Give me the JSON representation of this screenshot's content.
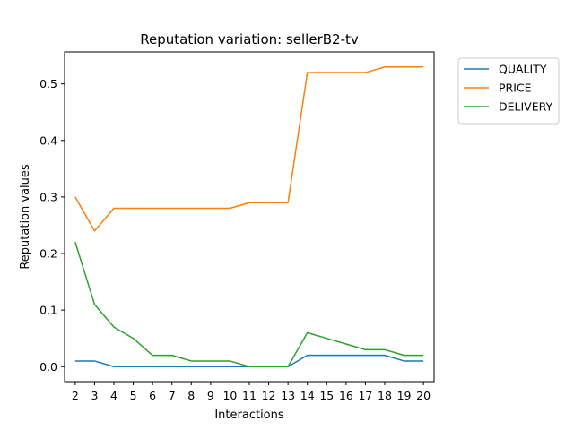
{
  "chart_data": {
    "type": "line",
    "title": "Reputation variation: sellerB2-tv",
    "xlabel": "Interactions",
    "ylabel": "Reputation values",
    "x": [
      2,
      3,
      4,
      5,
      6,
      7,
      8,
      9,
      10,
      11,
      12,
      13,
      14,
      15,
      16,
      17,
      18,
      19,
      20
    ],
    "xlim": [
      1.45,
      20.55
    ],
    "ylim": [
      -0.0265,
      0.5565
    ],
    "y_ticks": [
      0.0,
      0.1,
      0.2,
      0.3,
      0.4,
      0.5
    ],
    "y_tick_labels": [
      "0.0",
      "0.1",
      "0.2",
      "0.3",
      "0.4",
      "0.5"
    ],
    "grid": false,
    "legend_position": "outside-right-top",
    "series": [
      {
        "name": "QUALITY",
        "color": "#1f77b4",
        "values": [
          0.01,
          0.01,
          0.0,
          0.0,
          0.0,
          0.0,
          0.0,
          0.0,
          0.0,
          0.0,
          0.0,
          0.0,
          0.02,
          0.02,
          0.02,
          0.02,
          0.02,
          0.01,
          0.01
        ]
      },
      {
        "name": "PRICE",
        "color": "#ff7f0e",
        "values": [
          0.3,
          0.24,
          0.28,
          0.28,
          0.28,
          0.28,
          0.28,
          0.28,
          0.28,
          0.29,
          0.29,
          0.29,
          0.52,
          0.52,
          0.52,
          0.52,
          0.53,
          0.53,
          0.53
        ]
      },
      {
        "name": "DELIVERY",
        "color": "#2ca02c",
        "values": [
          0.22,
          0.11,
          0.07,
          0.05,
          0.02,
          0.02,
          0.01,
          0.01,
          0.01,
          0.0,
          0.0,
          0.0,
          0.06,
          0.05,
          0.04,
          0.03,
          0.03,
          0.02,
          0.02
        ]
      }
    ]
  }
}
